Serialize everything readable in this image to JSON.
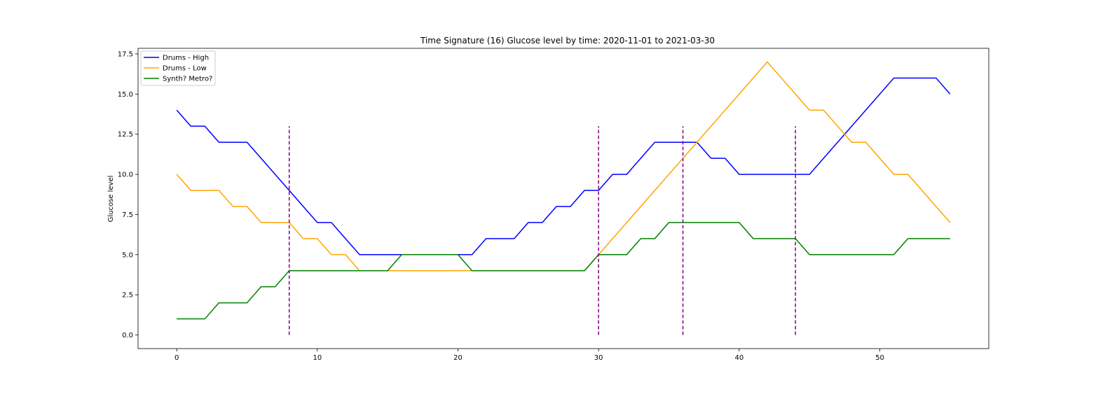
{
  "chart_data": {
    "type": "line",
    "title": "Time Signature (16) Glucose level by time: 2020-11-01 to 2021-03-30",
    "xlabel": "",
    "ylabel": "Glucose level",
    "xlim": [
      -2.75,
      57.75
    ],
    "ylim": [
      -0.85,
      17.85
    ],
    "x_ticks": [
      0,
      10,
      20,
      30,
      40,
      50
    ],
    "y_ticks": [
      0.0,
      2.5,
      5.0,
      7.5,
      10.0,
      12.5,
      15.0,
      17.5
    ],
    "y_tick_labels": [
      "0.0",
      "2.5",
      "5.0",
      "7.5",
      "10.0",
      "12.5",
      "15.0",
      "17.5"
    ],
    "x": [
      0,
      1,
      2,
      3,
      4,
      5,
      6,
      7,
      8,
      9,
      10,
      11,
      12,
      13,
      14,
      15,
      16,
      17,
      18,
      19,
      20,
      21,
      22,
      23,
      24,
      25,
      26,
      27,
      28,
      29,
      30,
      31,
      32,
      33,
      34,
      35,
      36,
      37,
      38,
      39,
      40,
      41,
      42,
      43,
      44,
      45,
      46,
      47,
      48,
      49,
      50,
      51,
      52,
      53,
      54,
      55
    ],
    "series": [
      {
        "name": "Drums - High",
        "color": "#0000ff",
        "values": [
          14,
          13,
          13,
          12,
          12,
          12,
          11,
          10,
          9,
          8,
          7,
          7,
          6,
          5,
          5,
          5,
          5,
          5,
          5,
          5,
          5,
          5,
          6,
          6,
          6,
          7,
          7,
          8,
          8,
          9,
          9,
          10,
          10,
          11,
          12,
          12,
          12,
          12,
          11,
          11,
          10,
          10,
          10,
          10,
          10,
          10,
          11,
          12,
          13,
          14,
          15,
          16,
          16,
          16,
          16,
          15
        ]
      },
      {
        "name": "Drums - Low",
        "color": "#ffa500",
        "values": [
          10,
          9,
          9,
          9,
          8,
          8,
          7,
          7,
          7,
          6,
          6,
          5,
          5,
          4,
          4,
          4,
          4,
          4,
          4,
          4,
          4,
          4,
          4,
          4,
          4,
          4,
          4,
          4,
          4,
          4,
          5,
          6,
          7,
          8,
          9,
          10,
          11,
          12,
          13,
          14,
          15,
          16,
          17,
          16,
          15,
          14,
          14,
          13,
          12,
          12,
          11,
          10,
          10,
          9,
          8,
          7
        ]
      },
      {
        "name": "Synth? Metro?",
        "color": "#008000",
        "values": [
          1,
          1,
          1,
          2,
          2,
          2,
          3,
          3,
          4,
          4,
          4,
          4,
          4,
          4,
          4,
          4,
          5,
          5,
          5,
          5,
          5,
          4,
          4,
          4,
          4,
          4,
          4,
          4,
          4,
          4,
          5,
          5,
          5,
          6,
          6,
          7,
          7,
          7,
          7,
          7,
          7,
          6,
          6,
          6,
          6,
          5,
          5,
          5,
          5,
          5,
          5,
          5,
          6,
          6,
          6,
          6
        ]
      }
    ],
    "vlines": {
      "color": "#800080",
      "style": "dashed",
      "x": [
        8,
        30,
        36,
        44
      ],
      "ymin": 0,
      "ymax": 13
    },
    "legend": {
      "placement": "top-left"
    },
    "grid": false
  }
}
